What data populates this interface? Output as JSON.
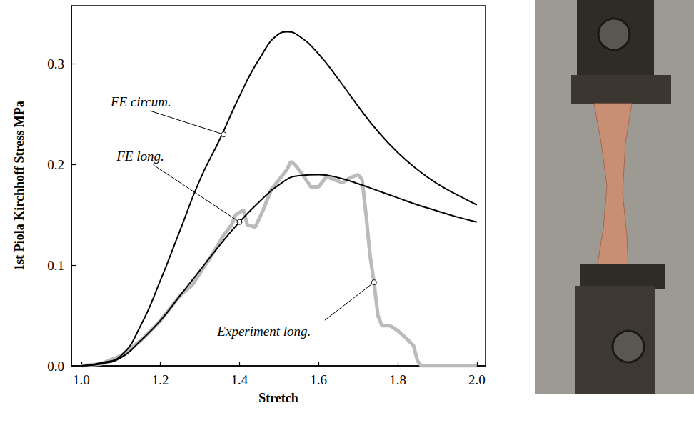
{
  "chart_data": {
    "type": "line",
    "xlabel": "Stretch",
    "ylabel": "1st Piola Kirchhoff Stress MPa",
    "xlim": [
      0.975,
      2.022
    ],
    "ylim": [
      0,
      0.358
    ],
    "xticks": [
      {
        "value": 1.0,
        "label": "1.0"
      },
      1.2,
      1.4,
      1.6,
      1.8,
      {
        "value": 2.0,
        "label": "2.0"
      }
    ],
    "yticks": [
      {
        "value": 0,
        "label": "0.0"
      },
      0.1,
      0.2,
      0.3
    ],
    "grid": false,
    "series": [
      {
        "name": "FE circum.",
        "color": "#000000",
        "line_style": "solid",
        "annotation": {
          "x": 1.36,
          "y": 0.23
        },
        "x": [
          1.0,
          1.05,
          1.1,
          1.15,
          1.2,
          1.25,
          1.3,
          1.35,
          1.4,
          1.45,
          1.5,
          1.52,
          1.55,
          1.6,
          1.65,
          1.7,
          1.75,
          1.8,
          1.85,
          1.9,
          1.95,
          2.0
        ],
        "values": [
          0,
          0.003,
          0.01,
          0.04,
          0.085,
          0.135,
          0.185,
          0.225,
          0.268,
          0.305,
          0.33,
          0.332,
          0.328,
          0.31,
          0.285,
          0.258,
          0.233,
          0.212,
          0.195,
          0.181,
          0.17,
          0.16
        ]
      },
      {
        "name": "FE long.",
        "color": "#000000",
        "line_style": "solid",
        "annotation": {
          "x": 1.4,
          "y": 0.143
        },
        "x": [
          1.0,
          1.05,
          1.1,
          1.15,
          1.2,
          1.25,
          1.3,
          1.35,
          1.4,
          1.45,
          1.5,
          1.55,
          1.6,
          1.65,
          1.7,
          1.75,
          1.8,
          1.85,
          1.9,
          1.95,
          2.0
        ],
        "values": [
          0,
          0.002,
          0.008,
          0.025,
          0.045,
          0.07,
          0.095,
          0.12,
          0.143,
          0.163,
          0.18,
          0.189,
          0.19,
          0.187,
          0.181,
          0.174,
          0.167,
          0.16,
          0.154,
          0.148,
          0.143
        ]
      },
      {
        "name": "Experiment long.",
        "color": "#bbbbbb",
        "line_style": "solid",
        "annotation": {
          "x": 1.74,
          "y": 0.083
        },
        "x": [
          1.0,
          1.05,
          1.1,
          1.15,
          1.2,
          1.25,
          1.28,
          1.3,
          1.33,
          1.36,
          1.38,
          1.39,
          1.41,
          1.42,
          1.44,
          1.46,
          1.48,
          1.5,
          1.52,
          1.53,
          1.54,
          1.56,
          1.58,
          1.6,
          1.62,
          1.64,
          1.66,
          1.68,
          1.7,
          1.71,
          1.72,
          1.73,
          1.74,
          1.75,
          1.76,
          1.78,
          1.8,
          1.82,
          1.84,
          1.85,
          1.86,
          1.9,
          2.0
        ],
        "values": [
          0,
          0.002,
          0.01,
          0.025,
          0.045,
          0.07,
          0.08,
          0.092,
          0.11,
          0.13,
          0.14,
          0.15,
          0.155,
          0.14,
          0.138,
          0.155,
          0.175,
          0.185,
          0.195,
          0.203,
          0.2,
          0.19,
          0.178,
          0.178,
          0.188,
          0.185,
          0.182,
          0.187,
          0.19,
          0.185,
          0.15,
          0.11,
          0.083,
          0.05,
          0.04,
          0.04,
          0.035,
          0.028,
          0.02,
          0.005,
          0,
          0,
          0
        ]
      }
    ]
  }
}
